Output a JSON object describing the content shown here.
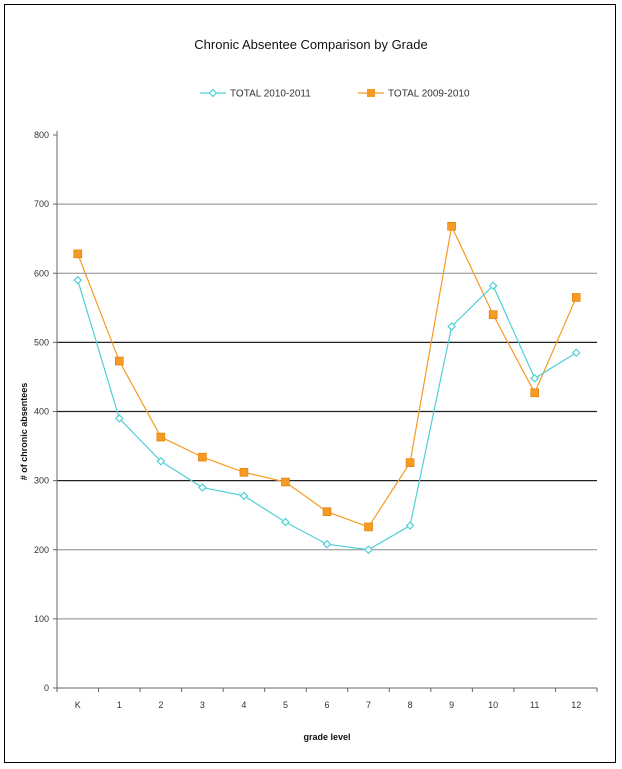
{
  "chart_data": {
    "type": "line",
    "title": "Chronic Absentee Comparison by Grade",
    "xlabel": "grade level",
    "ylabel": "# of chronic absentees",
    "categories": [
      "K",
      "1",
      "2",
      "3",
      "4",
      "5",
      "6",
      "7",
      "8",
      "9",
      "10",
      "11",
      "12"
    ],
    "ylim": [
      0,
      800
    ],
    "yticks": [
      0,
      100,
      200,
      300,
      400,
      500,
      600,
      700,
      800
    ],
    "legend_position": "top",
    "grid": true,
    "series": [
      {
        "name": "TOTAL 2010-2011",
        "color": "#4fd0d6",
        "marker": "diamond",
        "values": [
          590,
          390,
          328,
          290,
          278,
          240,
          208,
          200,
          235,
          523,
          582,
          448,
          485
        ]
      },
      {
        "name": "TOTAL 2009-2010",
        "color": "#f59a22",
        "marker": "square",
        "values": [
          628,
          473,
          363,
          334,
          312,
          298,
          255,
          233,
          326,
          668,
          540,
          427,
          565
        ]
      }
    ]
  }
}
